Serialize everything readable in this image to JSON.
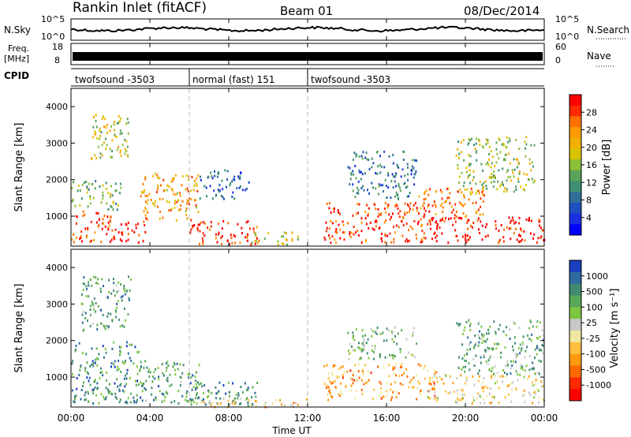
{
  "chart_data": {
    "type": "heatmap",
    "header": {
      "station": "Rankin Inlet (fitACF)",
      "beam": "Beam 01",
      "date": "08/Dec/2014"
    },
    "top_panels": {
      "noise": {
        "left_label": "N.Sky",
        "right_label": "N.Search",
        "y_ticks": [
          "10^5",
          "10^0"
        ],
        "right_ticks": [
          "10^5",
          "10^0"
        ]
      },
      "freq": {
        "left_label_1": "Freq.",
        "left_label_2": "[MHz]",
        "right_label": "Nave",
        "y_ticks": [
          "18",
          "8"
        ],
        "right_ticks": [
          "60",
          "0"
        ]
      },
      "cpid": {
        "label": "CPID",
        "segments": [
          {
            "name": "twofsound -3503",
            "start_hr": 0,
            "end_hr": 6
          },
          {
            "name": "normal (fast) 151",
            "start_hr": 6,
            "end_hr": 12
          },
          {
            "name": "twofsound -3503",
            "start_hr": 12,
            "end_hr": 24
          }
        ]
      }
    },
    "xaxis": {
      "label": "Time UT",
      "ticks": [
        "00:00",
        "04:00",
        "08:00",
        "12:00",
        "16:00",
        "20:00",
        "00:00"
      ],
      "range_hr": [
        0,
        24
      ]
    },
    "yaxis": {
      "label": "Slant Range [km]",
      "ticks": [
        1000,
        2000,
        3000,
        4000
      ],
      "range_km": [
        180,
        4500
      ]
    },
    "panels": [
      {
        "quantity": "Power",
        "colorbar_label": "Power [dB]",
        "colorbar_ticks": [
          "28",
          "24",
          "20",
          "16",
          "12",
          "8",
          "4"
        ],
        "colors": [
          "#ff0000",
          "#ff2a00",
          "#ff7000",
          "#ff9a00",
          "#f2b000",
          "#d8c400",
          "#8cbf3a",
          "#5aa25a",
          "#3f9070",
          "#2f6f9a",
          "#1f4fbf",
          "#1a2fe0",
          "#0000ff"
        ]
      },
      {
        "quantity": "Velocity",
        "colorbar_label": "Velocity [m s⁻¹]",
        "colorbar_ticks": [
          "1000",
          "500",
          "100",
          "25",
          "-25",
          "-100",
          "-500",
          "-1000"
        ],
        "colors": [
          "#1a3fc0",
          "#2f6aa0",
          "#3f8a70",
          "#58a858",
          "#7fc640",
          "#c8c8c8",
          "#f0e8a0",
          "#ffc040",
          "#ff9a10",
          "#ff6a00",
          "#ff2a00",
          "#ff0000"
        ]
      }
    ],
    "regions": {
      "power": [
        {
          "t": [
            0.0,
            2.0
          ],
          "r": [
            300,
            1200
          ],
          "level": 0.1
        },
        {
          "t": [
            2.0,
            3.8
          ],
          "r": [
            300,
            900
          ],
          "level": 0.05
        },
        {
          "t": [
            0.0,
            2.5
          ],
          "r": [
            1200,
            2000
          ],
          "level": 0.55
        },
        {
          "t": [
            1.0,
            3.0
          ],
          "r": [
            2600,
            3900
          ],
          "level": 0.45
        },
        {
          "t": [
            3.5,
            6.5
          ],
          "r": [
            900,
            2200
          ],
          "level": 0.3
        },
        {
          "t": [
            6.0,
            9.5
          ],
          "r": [
            250,
            900
          ],
          "level": 0.08
        },
        {
          "t": [
            6.5,
            9.0
          ],
          "r": [
            1500,
            2300
          ],
          "level": 0.75
        },
        {
          "t": [
            9.0,
            11.5
          ],
          "r": [
            250,
            600
          ],
          "level": 0.45
        },
        {
          "t": [
            12.8,
            18.5
          ],
          "r": [
            300,
            1400
          ],
          "level": 0.12
        },
        {
          "t": [
            18.0,
            24.0
          ],
          "r": [
            300,
            1000
          ],
          "level": 0.02
        },
        {
          "t": [
            17.5,
            21.0
          ],
          "r": [
            1000,
            1800
          ],
          "level": 0.25
        },
        {
          "t": [
            19.5,
            23.5
          ],
          "r": [
            1700,
            3200
          ],
          "level": 0.5
        },
        {
          "t": [
            14.0,
            17.5
          ],
          "r": [
            1500,
            2800
          ],
          "level": 0.7
        }
      ],
      "velocity": [
        {
          "t": [
            0.0,
            3.5
          ],
          "r": [
            300,
            2000
          ],
          "level": 0.22
        },
        {
          "t": [
            0.5,
            3.0
          ],
          "r": [
            2300,
            3800
          ],
          "level": 0.28
        },
        {
          "t": [
            3.5,
            6.5
          ],
          "r": [
            300,
            1500
          ],
          "level": 0.25
        },
        {
          "t": [
            6.0,
            9.5
          ],
          "r": [
            250,
            900
          ],
          "level": 0.2
        },
        {
          "t": [
            6.5,
            12.0
          ],
          "r": [
            200,
            450
          ],
          "level": 0.6
        },
        {
          "t": [
            12.8,
            18.5
          ],
          "r": [
            400,
            1400
          ],
          "level": 0.68
        },
        {
          "t": [
            18.0,
            24.0
          ],
          "r": [
            300,
            1100
          ],
          "level": 0.55
        },
        {
          "t": [
            19.5,
            24.0
          ],
          "r": [
            1100,
            2600
          ],
          "level": 0.3
        },
        {
          "t": [
            14.0,
            17.5
          ],
          "r": [
            1500,
            2400
          ],
          "level": 0.35
        }
      ]
    }
  }
}
